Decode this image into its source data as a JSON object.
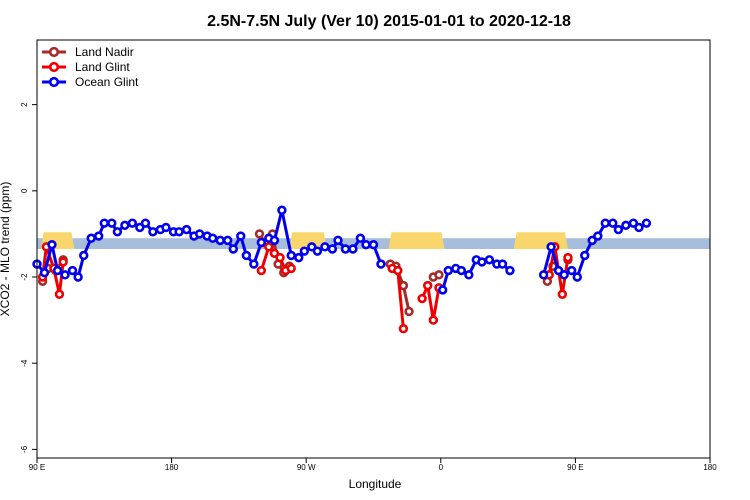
{
  "chart_data": {
    "type": "line",
    "title": "2.5N-7.5N July (Ver 10)   2015-01-01 to 2020-12-18",
    "xlabel": "Longitude",
    "ylabel": "XCO2 - MLO trend (ppm)",
    "xlim": [
      -180,
      180
    ],
    "ylim": [
      -6.2,
      3.5
    ],
    "x_ticks": [
      {
        "value": -180,
        "label": "90 E"
      },
      {
        "value": -108,
        "label": "180"
      },
      {
        "value": -36,
        "label": "90 W"
      },
      {
        "value": 36,
        "label": "0"
      },
      {
        "value": 108,
        "label": "90 E"
      },
      {
        "value": 180,
        "label": "180"
      }
    ],
    "y_ticks": [
      -6,
      -4,
      -2,
      0,
      2
    ],
    "legend_position": "top-left",
    "band": {
      "y_low": -1.35,
      "y_high": -1.1,
      "color": "#a6bddb"
    },
    "land_band_segments": [
      {
        "x0": -178,
        "x1": -160
      },
      {
        "x0": -45,
        "x1": -25
      },
      {
        "x0": 8,
        "x1": 38
      },
      {
        "x0": 75,
        "x1": 104
      }
    ],
    "land_color": "#f9d66b",
    "series": [
      {
        "name": "Land Nadir",
        "color": "#a52a2a",
        "points": [
          [
            -177,
            -2.1
          ],
          [
            -174,
            -1.8
          ],
          [
            -170,
            -1.85
          ],
          [
            -166,
            -1.6
          ],
          [
            -61,
            -1.0
          ],
          [
            -58,
            -1.2
          ],
          [
            -54,
            -1.0
          ],
          [
            -51,
            -1.7
          ],
          [
            -48,
            -1.9
          ],
          [
            -45,
            -1.75
          ],
          [
            9,
            -1.7
          ],
          [
            12,
            -1.75
          ],
          [
            16,
            -2.2
          ],
          [
            19,
            -2.8
          ],
          [
            32,
            -2.0
          ],
          [
            35,
            -1.95
          ],
          [
            93,
            -2.1
          ],
          [
            96,
            -1.75
          ],
          [
            104,
            -1.6
          ]
        ]
      },
      {
        "name": "Land Glint",
        "color": "#ee0000",
        "points": [
          [
            -177,
            -2.0
          ],
          [
            -175,
            -1.3
          ],
          [
            -171,
            -1.8
          ],
          [
            -168,
            -2.4
          ],
          [
            -166,
            -1.65
          ],
          [
            -60,
            -1.85
          ],
          [
            -56,
            -1.3
          ],
          [
            -53,
            -1.45
          ],
          [
            -50,
            -1.55
          ],
          [
            -47,
            -1.85
          ],
          [
            -44,
            -1.8
          ],
          [
            10,
            -1.8
          ],
          [
            13,
            -1.85
          ],
          [
            16,
            -3.2
          ],
          [
            26,
            -2.5
          ],
          [
            29,
            -2.2
          ],
          [
            32,
            -3.0
          ],
          [
            35,
            -2.25
          ],
          [
            94,
            -1.95
          ],
          [
            97,
            -1.3
          ],
          [
            101,
            -2.4
          ],
          [
            104,
            -1.55
          ]
        ]
      },
      {
        "name": "Ocean Glint",
        "color": "#0000ee",
        "points": [
          [
            -180,
            -1.7
          ],
          [
            -176,
            -1.9
          ],
          [
            -172,
            -1.25
          ],
          [
            -169,
            -1.85
          ],
          [
            -165,
            -1.95
          ],
          [
            -161,
            -1.85
          ],
          [
            -158,
            -2.0
          ],
          [
            -155,
            -1.5
          ],
          [
            -151,
            -1.1
          ],
          [
            -147,
            -1.05
          ],
          [
            -144,
            -0.75
          ],
          [
            -140,
            -0.75
          ],
          [
            -137,
            -0.95
          ],
          [
            -133,
            -0.8
          ],
          [
            -129,
            -0.75
          ],
          [
            -125,
            -0.85
          ],
          [
            -122,
            -0.75
          ],
          [
            -118,
            -0.95
          ],
          [
            -114,
            -0.9
          ],
          [
            -111,
            -0.85
          ],
          [
            -107,
            -0.95
          ],
          [
            -104,
            -0.95
          ],
          [
            -100,
            -0.9
          ],
          [
            -96,
            -1.05
          ],
          [
            -93,
            -1.0
          ],
          [
            -89,
            -1.05
          ],
          [
            -86,
            -1.1
          ],
          [
            -82,
            -1.15
          ],
          [
            -78,
            -1.15
          ],
          [
            -75,
            -1.35
          ],
          [
            -71,
            -1.05
          ],
          [
            -68,
            -1.5
          ],
          [
            -64,
            -1.7
          ],
          [
            -60,
            -1.2
          ],
          [
            -56,
            -1.1
          ],
          [
            -53,
            -1.15
          ],
          [
            -49,
            -0.45
          ],
          [
            -44,
            -1.5
          ],
          [
            -40,
            -1.55
          ],
          [
            -37,
            -1.4
          ],
          [
            -33,
            -1.3
          ],
          [
            -30,
            -1.4
          ],
          [
            -26,
            -1.3
          ],
          [
            -22,
            -1.35
          ],
          [
            -19,
            -1.15
          ],
          [
            -15,
            -1.35
          ],
          [
            -11,
            -1.35
          ],
          [
            -7,
            -1.1
          ],
          [
            -4,
            -1.25
          ],
          [
            0,
            -1.25
          ],
          [
            4,
            -1.7
          ],
          [
            37,
            -2.3
          ],
          [
            40,
            -1.85
          ],
          [
            44,
            -1.8
          ],
          [
            47,
            -1.85
          ],
          [
            51,
            -1.95
          ],
          [
            55,
            -1.6
          ],
          [
            58,
            -1.65
          ],
          [
            62,
            -1.6
          ],
          [
            66,
            -1.7
          ],
          [
            69,
            -1.7
          ],
          [
            73,
            -1.85
          ],
          [
            91,
            -1.95
          ],
          [
            95,
            -1.3
          ],
          [
            99,
            -1.85
          ],
          [
            102,
            -1.95
          ],
          [
            106,
            -1.85
          ],
          [
            109,
            -2.0
          ],
          [
            113,
            -1.5
          ],
          [
            117,
            -1.15
          ],
          [
            120,
            -1.05
          ],
          [
            124,
            -0.75
          ],
          [
            128,
            -0.75
          ],
          [
            131,
            -0.9
          ],
          [
            135,
            -0.8
          ],
          [
            139,
            -0.75
          ],
          [
            142,
            -0.85
          ],
          [
            146,
            -0.75
          ]
        ]
      }
    ]
  }
}
